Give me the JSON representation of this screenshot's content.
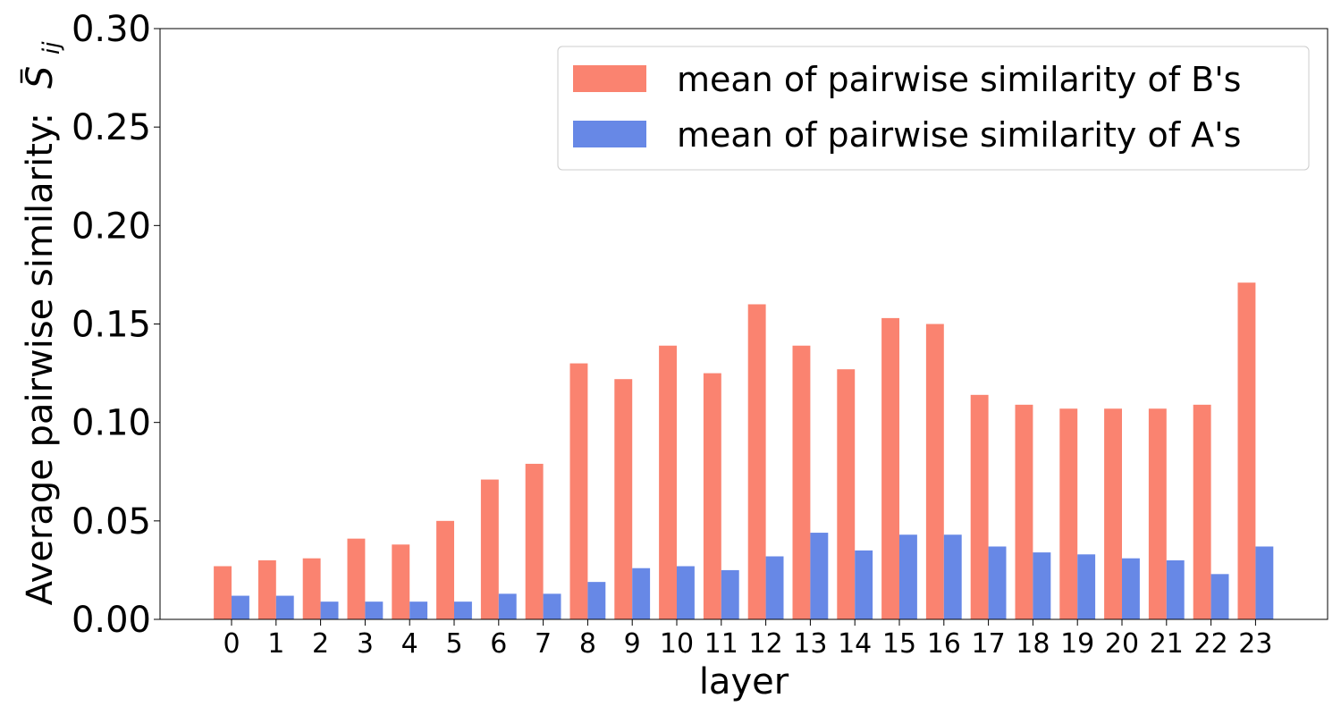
{
  "chart_data": {
    "type": "bar",
    "xlabel": "layer",
    "ylabel": "Average pairwise similarity:",
    "ylabel_symbol_base": "S",
    "ylabel_symbol_sub": "ij",
    "categories": [
      "0",
      "1",
      "2",
      "3",
      "4",
      "5",
      "6",
      "7",
      "8",
      "9",
      "10",
      "11",
      "12",
      "13",
      "14",
      "15",
      "16",
      "17",
      "18",
      "19",
      "20",
      "21",
      "22",
      "23"
    ],
    "ylim": [
      0,
      0.3
    ],
    "yticks": [
      0.0,
      0.05,
      0.1,
      0.15,
      0.2,
      0.25,
      0.3
    ],
    "ytick_labels": [
      "0.00",
      "0.05",
      "0.10",
      "0.15",
      "0.20",
      "0.25",
      "0.30"
    ],
    "grid": false,
    "legend_position": "top-right",
    "series": [
      {
        "name": "mean of pairwise similarity of B's",
        "color": "#fa8370",
        "values": [
          0.027,
          0.03,
          0.031,
          0.041,
          0.038,
          0.05,
          0.071,
          0.079,
          0.13,
          0.122,
          0.139,
          0.125,
          0.16,
          0.139,
          0.127,
          0.153,
          0.15,
          0.114,
          0.109,
          0.107,
          0.107,
          0.107,
          0.109,
          0.171
        ]
      },
      {
        "name": "mean of pairwise similarity of A's",
        "color": "#6788e6",
        "values": [
          0.012,
          0.012,
          0.009,
          0.009,
          0.009,
          0.009,
          0.013,
          0.013,
          0.019,
          0.026,
          0.027,
          0.025,
          0.032,
          0.044,
          0.035,
          0.043,
          0.043,
          0.037,
          0.034,
          0.033,
          0.031,
          0.03,
          0.023,
          0.037
        ]
      }
    ]
  }
}
